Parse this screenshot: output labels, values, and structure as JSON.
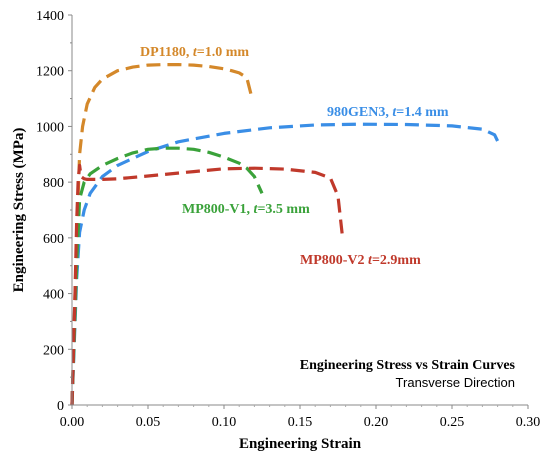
{
  "chart_data": {
    "type": "line",
    "xlabel": "Engineering Strain",
    "ylabel": "Engineering Stress (MPa)",
    "xlim": [
      0,
      0.3
    ],
    "ylim": [
      0,
      1400
    ],
    "x_ticks": [
      "0.00",
      "0.05",
      "0.10",
      "0.15",
      "0.20",
      "0.25",
      "0.30"
    ],
    "y_ticks": [
      "0",
      "200",
      "400",
      "600",
      "800",
      "1000",
      "1200",
      "1400"
    ],
    "grid": false,
    "annotation_title": "Engineering Stress vs Strain Curves",
    "annotation_subtitle": "Transverse Direction",
    "series": [
      {
        "name": "DP1180, t=1.0 mm",
        "label_parts": [
          "DP1180, ",
          "t",
          "=1.0 mm"
        ],
        "color": "#d4882a",
        "x": [
          0,
          0.003,
          0.005,
          0.007,
          0.01,
          0.015,
          0.02,
          0.03,
          0.04,
          0.05,
          0.06,
          0.07,
          0.08,
          0.09,
          0.1,
          0.105,
          0.11,
          0.115,
          0.118
        ],
        "y": [
          0,
          600,
          900,
          1000,
          1080,
          1140,
          1170,
          1200,
          1213,
          1220,
          1222,
          1222,
          1220,
          1215,
          1207,
          1200,
          1192,
          1175,
          1110
        ]
      },
      {
        "name": "980GEN3, t=1.4 mm",
        "label_parts": [
          "980GEN3, ",
          "t",
          "=1.4 mm"
        ],
        "color": "#3a8ee6",
        "x": [
          0,
          0.003,
          0.005,
          0.008,
          0.012,
          0.02,
          0.03,
          0.05,
          0.07,
          0.1,
          0.13,
          0.16,
          0.19,
          0.22,
          0.25,
          0.27,
          0.278,
          0.282
        ],
        "y": [
          0,
          450,
          620,
          700,
          760,
          820,
          860,
          910,
          945,
          975,
          995,
          1005,
          1008,
          1007,
          1002,
          990,
          970,
          925
        ]
      },
      {
        "name": "MP800-V1, t=3.5 mm",
        "label_parts": [
          "MP800-V1, ",
          "t",
          "=3.5 mm"
        ],
        "color": "#3aa23a",
        "x": [
          0,
          0.003,
          0.005,
          0.008,
          0.012,
          0.02,
          0.03,
          0.04,
          0.05,
          0.06,
          0.07,
          0.08,
          0.09,
          0.1,
          0.11,
          0.115,
          0.12,
          0.125
        ],
        "y": [
          0,
          500,
          740,
          800,
          830,
          860,
          885,
          905,
          918,
          922,
          922,
          918,
          907,
          890,
          868,
          850,
          820,
          760
        ]
      },
      {
        "name": "MP800-V2 t=2.9mm",
        "label_parts": [
          "MP800-V2 ",
          "t",
          "=2.9mm"
        ],
        "color": "#c0392b",
        "x": [
          0,
          0.002,
          0.003,
          0.004,
          0.005,
          0.006,
          0.008,
          0.01,
          0.02,
          0.03,
          0.05,
          0.08,
          0.1,
          0.12,
          0.14,
          0.16,
          0.17,
          0.175,
          0.178
        ],
        "y": [
          0,
          400,
          650,
          800,
          860,
          820,
          812,
          810,
          810,
          812,
          822,
          838,
          848,
          850,
          847,
          835,
          815,
          750,
          600
        ]
      }
    ]
  }
}
